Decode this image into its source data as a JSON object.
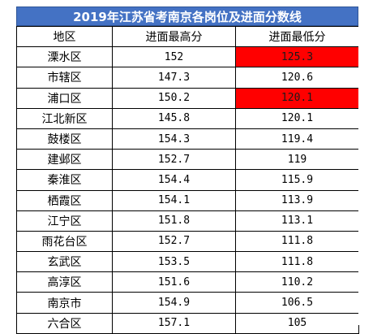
{
  "title": "2019年江苏省考南京各岗位及进面分数线",
  "headers": {
    "district": "地区",
    "highest": "进面最高分",
    "lowest": "进面最低分"
  },
  "highlight_color": "#ff0000",
  "title_bg_color": "#4472c4",
  "rows": [
    {
      "district": "溧水区",
      "highest": "152",
      "lowest": "125.3",
      "highlight": true
    },
    {
      "district": "市辖区",
      "highest": "147.3",
      "lowest": "120.6",
      "highlight": false
    },
    {
      "district": "浦口区",
      "highest": "150.2",
      "lowest": "120.1",
      "highlight": true
    },
    {
      "district": "江北新区",
      "highest": "145.8",
      "lowest": "120.1",
      "highlight": false
    },
    {
      "district": "鼓楼区",
      "highest": "154.3",
      "lowest": "119.4",
      "highlight": false
    },
    {
      "district": "建邺区",
      "highest": "152.7",
      "lowest": "119",
      "highlight": false
    },
    {
      "district": "秦淮区",
      "highest": "154.4",
      "lowest": "115.9",
      "highlight": false
    },
    {
      "district": "栖霞区",
      "highest": "154.1",
      "lowest": "113.9",
      "highlight": false
    },
    {
      "district": "江宁区",
      "highest": "151.8",
      "lowest": "113.1",
      "highlight": false
    },
    {
      "district": "雨花台区",
      "highest": "152.7",
      "lowest": "111.8",
      "highlight": false
    },
    {
      "district": "玄武区",
      "highest": "153.5",
      "lowest": "111.8",
      "highlight": false
    },
    {
      "district": "高淳区",
      "highest": "151.6",
      "lowest": "110.2",
      "highlight": false
    },
    {
      "district": "南京市",
      "highest": "154.9",
      "lowest": "106.5",
      "highlight": false
    },
    {
      "district": "六合区",
      "highest": "157.1",
      "lowest": "105",
      "highlight": false
    }
  ]
}
